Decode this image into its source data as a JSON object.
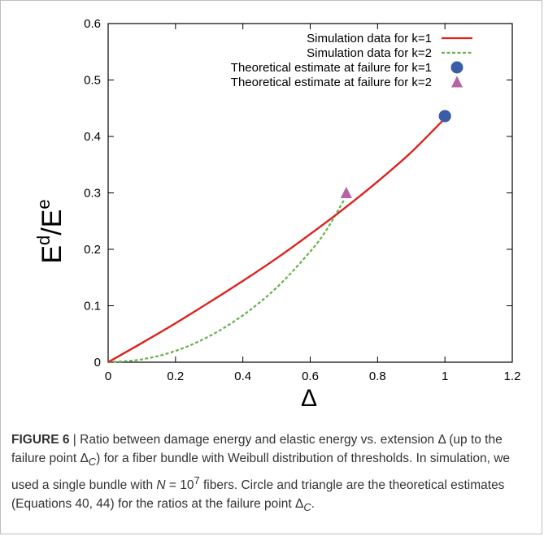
{
  "chart_data": {
    "type": "line",
    "title": "",
    "xlabel": "Δ",
    "ylabel": {
      "base": "E",
      "num_sup": "d",
      "slash": "/",
      "den": "E",
      "den_sup": "e"
    },
    "xlim": [
      0,
      1.2
    ],
    "ylim": [
      0,
      0.6
    ],
    "xticks": [
      "0",
      "0.2",
      "0.4",
      "0.6",
      "0.8",
      "1",
      "1.2"
    ],
    "yticks": [
      "0",
      "0.1",
      "0.2",
      "0.3",
      "0.4",
      "0.5",
      "0.6"
    ],
    "grid": false,
    "legend_position": "top-right",
    "series": [
      {
        "name": "Simulation data for k=1",
        "style": "solid",
        "color": "#e0201b",
        "x": [
          0,
          0.1,
          0.2,
          0.3,
          0.4,
          0.5,
          0.6,
          0.7,
          0.8,
          0.9,
          1.0
        ],
        "y": [
          0,
          0.034,
          0.069,
          0.106,
          0.144,
          0.184,
          0.227,
          0.272,
          0.32,
          0.372,
          0.432
        ]
      },
      {
        "name": "Simulation data for k=2",
        "style": "dashed",
        "color": "#6ab04c",
        "x": [
          0,
          0.1,
          0.2,
          0.3,
          0.4,
          0.5,
          0.6,
          0.65,
          0.7
        ],
        "y": [
          0,
          0.005,
          0.02,
          0.046,
          0.083,
          0.132,
          0.196,
          0.236,
          0.287
        ]
      },
      {
        "name": "Theoretical estimate at failure for k=1",
        "style": "circle",
        "color": "#3a5da8",
        "x": [
          1.0
        ],
        "y": [
          0.436
        ]
      },
      {
        "name": "Theoretical estimate at failure for k=2",
        "style": "triangle",
        "color": "#b565a7",
        "x": [
          0.707
        ],
        "y": [
          0.3
        ]
      }
    ]
  },
  "caption": {
    "label": "FIGURE 6",
    "separator": "|",
    "text": "Ratio between damage energy and elastic energy vs. extension Δ (up to the failure point Δ_C) for a fiber bundle with Weibull distribution of thresholds. In simulation, we used a single bundle with N = 10^7 fibers. Circle and triangle are the theoretical estimates (Equations 40, 44) for the ratios at the failure point Δ_C."
  }
}
